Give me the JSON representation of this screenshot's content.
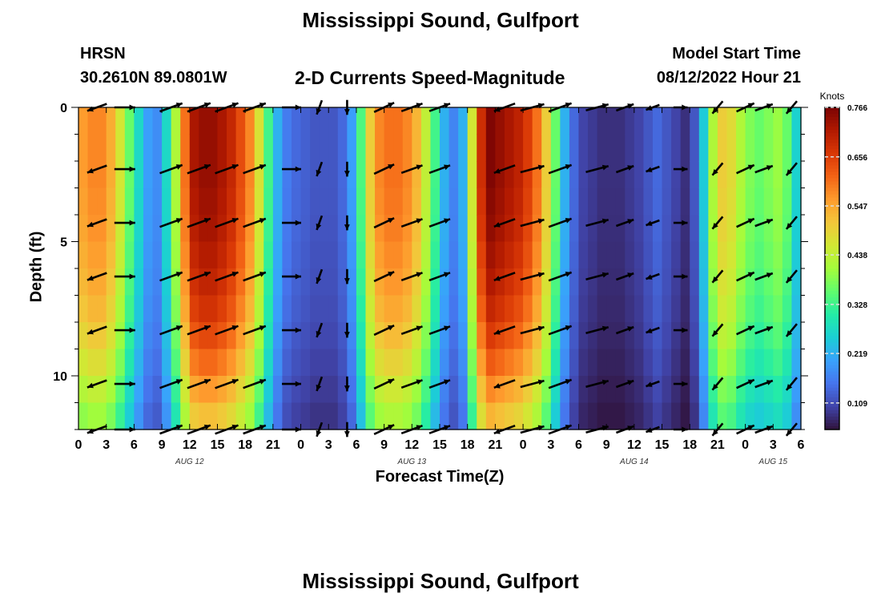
{
  "header": {
    "title": "Mississippi Sound, Gulfport",
    "station": "HRSN",
    "coords": "30.2610N  89.0801W",
    "plot_title": "2-D Currents Speed-Magnitude",
    "model_start_label": "Model Start Time",
    "model_start_value": "08/12/2022 Hour 21"
  },
  "footer": {
    "title": "Mississippi Sound, Gulfport"
  },
  "colors": {
    "scale": [
      "#30123b",
      "#4145ab",
      "#4675ed",
      "#39a2fc",
      "#1bcfd4",
      "#24eca6",
      "#61fc6c",
      "#a4fc3b",
      "#d1e834",
      "#f3c63a",
      "#fe9b2d",
      "#f36315",
      "#d93806",
      "#b11901",
      "#7a0403"
    ],
    "arrow": "#000000"
  },
  "chart_data": {
    "type": "heatmap",
    "title": "2-D Currents Speed-Magnitude",
    "xlabel": "Forecast Time(Z)",
    "ylabel": "Depth (ft)",
    "x_hours": [
      0,
      78
    ],
    "ylim": [
      0,
      12
    ],
    "yticks": [
      "0",
      "5",
      "10"
    ],
    "xtick_labels": [
      "0",
      "3",
      "6",
      "9",
      "12",
      "15",
      "18",
      "21",
      "0",
      "3",
      "6",
      "9",
      "12",
      "15",
      "18",
      "21",
      "0",
      "3",
      "6",
      "9",
      "12",
      "15",
      "18",
      "21",
      "0",
      "3",
      "6"
    ],
    "date_labels": [
      {
        "label": "AUG 12",
        "hour": 12
      },
      {
        "label": "AUG 13",
        "hour": 36
      },
      {
        "label": "AUG 14",
        "hour": 60
      },
      {
        "label": "AUG 15",
        "hour": 75
      }
    ],
    "colorbar": {
      "unit": "Knots",
      "min": 0.05,
      "max": 0.766,
      "tick_values": [
        "0.766",
        "0.656",
        "0.547",
        "0.438",
        "0.328",
        "0.219",
        "0.109"
      ]
    },
    "speed_profile_hourly_knots": [
      0.56,
      0.58,
      0.58,
      0.54,
      0.46,
      0.36,
      0.27,
      0.2,
      0.18,
      0.27,
      0.42,
      0.6,
      0.72,
      0.74,
      0.74,
      0.72,
      0.69,
      0.64,
      0.58,
      0.47,
      0.33,
      0.22,
      0.16,
      0.14,
      0.13,
      0.12,
      0.12,
      0.12,
      0.14,
      0.2,
      0.34,
      0.5,
      0.58,
      0.6,
      0.6,
      0.58,
      0.53,
      0.44,
      0.33,
      0.22,
      0.17,
      0.22,
      0.46,
      0.68,
      0.76,
      0.74,
      0.72,
      0.7,
      0.66,
      0.6,
      0.5,
      0.36,
      0.22,
      0.14,
      0.1,
      0.09,
      0.08,
      0.08,
      0.08,
      0.09,
      0.1,
      0.12,
      0.14,
      0.12,
      0.1,
      0.08,
      0.12,
      0.25,
      0.42,
      0.5,
      0.48,
      0.42,
      0.38,
      0.36,
      0.38,
      0.4,
      0.36,
      0.26,
      0.14
    ],
    "depth_factors": [
      1.0,
      1.0,
      1.0,
      0.99,
      0.98,
      0.96,
      0.94,
      0.91,
      0.87,
      0.82,
      0.76,
      0.7
    ],
    "arrow_hours": [
      2,
      5,
      10,
      13,
      16,
      19,
      23,
      26,
      29,
      33,
      36,
      39,
      46,
      49,
      52,
      56,
      59,
      62,
      65,
      69,
      72,
      74,
      77
    ],
    "arrow_depths_ft": [
      0,
      2.3,
      4.3,
      6.3,
      8.3,
      10.3,
      12
    ],
    "arrow_direction_deg": [
      200,
      0,
      20,
      20,
      20,
      20,
      0,
      250,
      270,
      25,
      20,
      20,
      200,
      15,
      20,
      15,
      20,
      200,
      0,
      230,
      25,
      20,
      230
    ],
    "arrow_speed_knots": [
      0.5,
      0.5,
      0.7,
      0.74,
      0.74,
      0.7,
      0.4,
      0.14,
      0.13,
      0.58,
      0.6,
      0.58,
      0.6,
      0.74,
      0.72,
      0.66,
      0.36,
      0.1,
      0.08,
      0.2,
      0.42,
      0.38,
      0.22
    ]
  }
}
